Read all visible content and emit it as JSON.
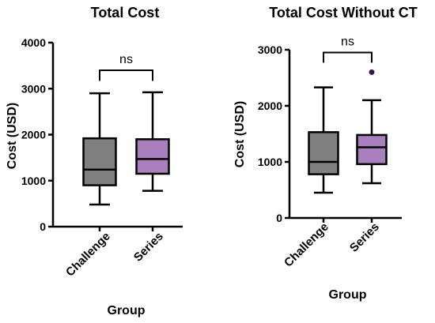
{
  "chart_data": [
    {
      "type": "box",
      "title": "Total Cost",
      "xlabel": "Group",
      "ylabel": "Cost (USD)",
      "ylim": [
        0,
        4000
      ],
      "yticks": [
        0,
        1000,
        2000,
        3000,
        4000
      ],
      "categories": [
        "Challenge",
        "Series"
      ],
      "boxes": [
        {
          "category": "Challenge",
          "min": 480,
          "q1": 900,
          "median": 1240,
          "q3": 1920,
          "max": 2900,
          "color": "#808080",
          "outliers": []
        },
        {
          "category": "Series",
          "min": 780,
          "q1": 1150,
          "median": 1470,
          "q3": 1900,
          "max": 2920,
          "color": "#a97fbd",
          "outliers": []
        }
      ],
      "significance": {
        "label": "ns",
        "bracket_y": 3400,
        "bracket_drop": 230
      }
    },
    {
      "type": "box",
      "title": "Total Cost Without CT",
      "xlabel": "Group",
      "ylabel": "Cost (USD)",
      "ylim": [
        0,
        3000
      ],
      "yticks": [
        0,
        1000,
        2000,
        3000
      ],
      "categories": [
        "Challenge",
        "Series"
      ],
      "boxes": [
        {
          "category": "Challenge",
          "min": 450,
          "q1": 780,
          "median": 1000,
          "q3": 1530,
          "max": 2330,
          "color": "#808080",
          "outliers": []
        },
        {
          "category": "Series",
          "min": 620,
          "q1": 960,
          "median": 1260,
          "q3": 1480,
          "max": 2100,
          "color": "#a97fbd",
          "outliers": [
            2600
          ]
        }
      ],
      "significance": {
        "label": "ns",
        "bracket_y": 2950,
        "bracket_drop": 180
      },
      "outlier_color": "#3a1650"
    }
  ]
}
